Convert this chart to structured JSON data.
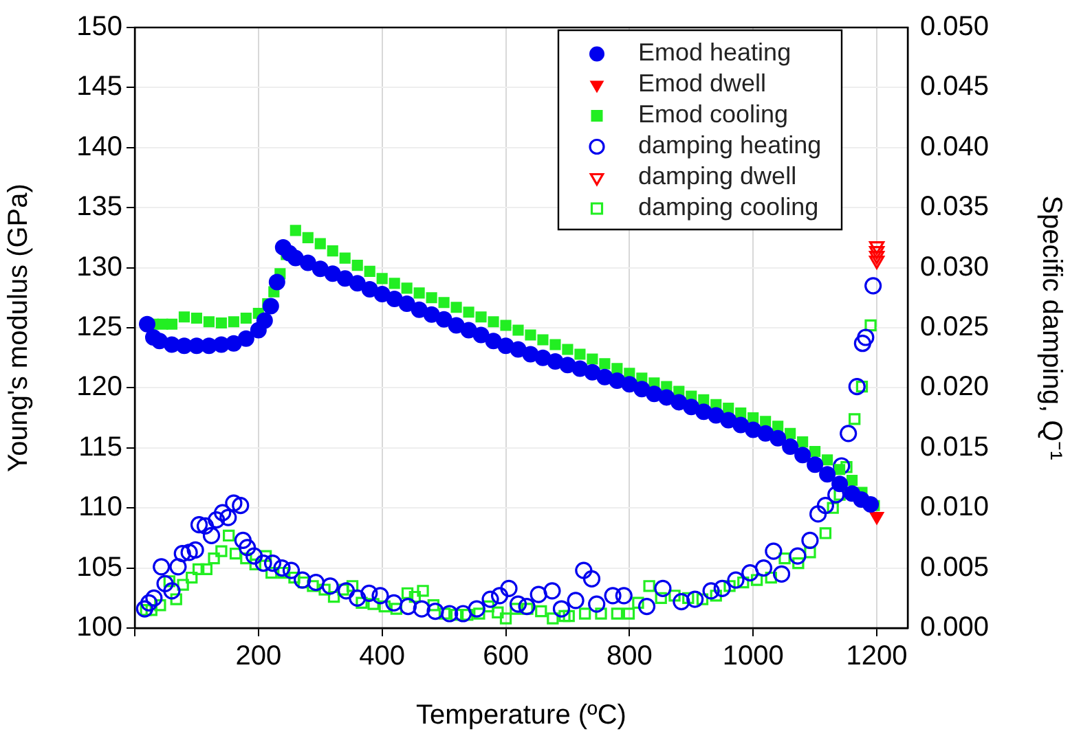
{
  "chart_data": {
    "type": "scatter",
    "xlabel": "Temperature (ºC)",
    "ylabel": "Young's modulus (GPa)",
    "y2label": "Specific damping, Q⁻¹",
    "xlim": [
      0,
      1250
    ],
    "xticks": [
      {
        "value": 0,
        "label": null
      },
      200,
      400,
      600,
      800,
      1000,
      1200
    ],
    "ylim": [
      100,
      150
    ],
    "yticks": [
      100,
      105,
      110,
      115,
      120,
      125,
      130,
      135,
      140,
      145,
      150
    ],
    "y2lim": [
      0,
      0.05
    ],
    "y2ticks": [
      {
        "value": 0,
        "label": "0.000"
      },
      {
        "value": 0.005,
        "label": "0.005"
      },
      {
        "value": 0.01,
        "label": "0.010"
      },
      {
        "value": 0.015,
        "label": "0.015"
      },
      {
        "value": 0.02,
        "label": "0.020"
      },
      {
        "value": 0.025,
        "label": "0.025"
      },
      {
        "value": 0.03,
        "label": "0.030"
      },
      {
        "value": 0.035,
        "label": "0.035"
      },
      {
        "value": 0.04,
        "label": "0.040"
      },
      {
        "value": 0.045,
        "label": "0.045"
      },
      {
        "value": 0.05,
        "label": "0.050"
      }
    ],
    "grid": true,
    "legend": "top right",
    "series": [
      {
        "name": "Emod heating",
        "color": "#0000ee",
        "marker": "circle",
        "x": [
          20,
          30,
          40,
          60,
          80,
          100,
          120,
          140,
          160,
          180,
          200,
          210,
          220,
          230,
          240,
          250,
          260,
          280,
          300,
          320,
          340,
          360,
          380,
          400,
          420,
          440,
          460,
          480,
          500,
          520,
          540,
          560,
          580,
          600,
          620,
          640,
          660,
          680,
          700,
          720,
          740,
          760,
          780,
          800,
          820,
          840,
          860,
          880,
          900,
          920,
          940,
          960,
          980,
          1000,
          1020,
          1040,
          1060,
          1080,
          1100,
          1120,
          1140,
          1160,
          1175,
          1190
        ],
        "values": [
          125.3,
          124.2,
          123.9,
          123.6,
          123.5,
          123.5,
          123.5,
          123.6,
          123.7,
          124.1,
          124.8,
          125.6,
          126.8,
          128.8,
          131.7,
          131.2,
          130.8,
          130.4,
          129.9,
          129.5,
          129.1,
          128.7,
          128.2,
          127.8,
          127.4,
          127.0,
          126.5,
          126.1,
          125.7,
          125.2,
          124.8,
          124.4,
          123.9,
          123.5,
          123.2,
          122.8,
          122.5,
          122.2,
          121.9,
          121.6,
          121.3,
          120.9,
          120.6,
          120.3,
          119.9,
          119.5,
          119.2,
          118.8,
          118.4,
          118.0,
          117.7,
          117.3,
          116.9,
          116.5,
          116.2,
          115.8,
          115.1,
          114.4,
          113.6,
          112.8,
          112.0,
          111.2,
          110.7,
          110.3
        ]
      },
      {
        "name": "Emod dwell",
        "color": "#ff0000",
        "marker": "triangle",
        "x": [
          1200
        ],
        "values": [
          109.3
        ]
      },
      {
        "name": "Emod cooling",
        "color": "#22ee22",
        "marker": "square",
        "x": [
          30,
          45,
          60,
          80,
          100,
          120,
          140,
          160,
          180,
          200,
          215,
          225,
          235,
          245,
          260,
          280,
          300,
          320,
          340,
          360,
          380,
          400,
          420,
          440,
          460,
          480,
          500,
          520,
          540,
          560,
          580,
          600,
          620,
          640,
          660,
          680,
          700,
          720,
          740,
          760,
          780,
          800,
          820,
          840,
          860,
          880,
          900,
          920,
          940,
          960,
          980,
          1000,
          1020,
          1040,
          1060,
          1080,
          1100,
          1120,
          1140,
          1160,
          1176,
          1196
        ],
        "values": [
          125.3,
          125.3,
          125.3,
          125.9,
          125.8,
          125.5,
          125.4,
          125.5,
          125.8,
          126.2,
          127.0,
          128.0,
          129.5,
          131.1,
          133.1,
          132.5,
          132.0,
          131.4,
          130.8,
          130.2,
          129.7,
          129.1,
          128.7,
          128.3,
          127.9,
          127.5,
          127.1,
          126.7,
          126.3,
          125.9,
          125.5,
          125.2,
          124.8,
          124.4,
          124.0,
          123.6,
          123.2,
          122.8,
          122.4,
          122.0,
          121.6,
          121.2,
          120.8,
          120.4,
          120.1,
          119.7,
          119.3,
          119.0,
          118.6,
          118.3,
          117.9,
          117.5,
          117.2,
          116.8,
          116.2,
          115.5,
          114.7,
          114.0,
          113.2,
          112.3,
          111.3,
          110.2
        ]
      },
      {
        "name": "damping heating",
        "color": "#0000ee",
        "marker": "circle",
        "axis": "y2",
        "x": [
          16,
          23,
          31,
          43,
          49,
          60,
          70,
          77,
          88,
          98,
          104,
          114,
          124,
          132,
          142,
          151,
          160,
          171,
          175,
          182,
          193,
          208,
          223,
          238,
          253,
          271,
          293,
          316,
          342,
          360,
          379,
          397,
          419,
          442,
          464,
          486,
          509,
          531,
          553,
          575,
          590,
          605,
          620,
          634,
          653,
          675,
          690,
          713,
          726,
          739,
          747,
          773,
          791,
          828,
          854,
          884,
          906,
          932,
          950,
          972,
          995,
          1017,
          1033,
          1046,
          1072,
          1092,
          1105,
          1117,
          1134,
          1143,
          1154,
          1168,
          1177,
          1182,
          1194
        ],
        "values": [
          0.0016,
          0.0021,
          0.0025,
          0.0051,
          0.0037,
          0.0031,
          0.0051,
          0.0062,
          0.0063,
          0.0065,
          0.0086,
          0.0085,
          0.0077,
          0.009,
          0.0096,
          0.0092,
          0.0104,
          0.0102,
          0.0073,
          0.0067,
          0.006,
          0.0054,
          0.0054,
          0.005,
          0.0048,
          0.004,
          0.0038,
          0.0035,
          0.0031,
          0.0025,
          0.0029,
          0.0027,
          0.0021,
          0.0018,
          0.0016,
          0.0014,
          0.0012,
          0.0012,
          0.0016,
          0.0024,
          0.0027,
          0.0033,
          0.002,
          0.0018,
          0.0028,
          0.0031,
          0.0016,
          0.0023,
          0.0048,
          0.0041,
          0.002,
          0.0027,
          0.0027,
          0.0018,
          0.0033,
          0.0022,
          0.0024,
          0.0031,
          0.0033,
          0.004,
          0.0046,
          0.005,
          0.0064,
          0.0045,
          0.006,
          0.0073,
          0.0095,
          0.0102,
          0.0111,
          0.0135,
          0.0162,
          0.0201,
          0.0237,
          0.0242,
          0.0285
        ]
      },
      {
        "name": "damping dwell",
        "color": "#ff0000",
        "marker": "triangle",
        "axis": "y2",
        "x": [
          1200,
          1200,
          1200,
          1200
        ],
        "values": [
          0.0318,
          0.0314,
          0.031,
          0.0306
        ]
      },
      {
        "name": "damping cooling",
        "color": "#22ee22",
        "marker": "square",
        "axis": "y2",
        "x": [
          18,
          27,
          41,
          56,
          67,
          78,
          92,
          103,
          116,
          128,
          140,
          152,
          163,
          180,
          195,
          212,
          221,
          240,
          258,
          273,
          288,
          307,
          322,
          337,
          352,
          367,
          386,
          404,
          423,
          441,
          453,
          466,
          483,
          501,
          520,
          538,
          557,
          572,
          587,
          600,
          616,
          635,
          657,
          676,
          695,
          702,
          728,
          754,
          780,
          799,
          814,
          832,
          851,
          873,
          895,
          918,
          940,
          962,
          984,
          1006,
          1029,
          1051,
          1073,
          1092,
          1117,
          1129,
          1140,
          1151,
          1164,
          1176,
          1190
        ],
        "values": [
          0.0015,
          0.0015,
          0.0019,
          0.0039,
          0.0024,
          0.0036,
          0.0042,
          0.0049,
          0.0049,
          0.0058,
          0.0064,
          0.0077,
          0.0062,
          0.0058,
          0.0053,
          0.006,
          0.0046,
          0.0046,
          0.0042,
          0.0038,
          0.0035,
          0.0032,
          0.0026,
          0.0032,
          0.0035,
          0.0021,
          0.002,
          0.0018,
          0.0016,
          0.0029,
          0.0026,
          0.0031,
          0.0019,
          0.0012,
          0.0011,
          0.0011,
          0.0012,
          0.0018,
          0.0013,
          0.0008,
          0.0016,
          0.0016,
          0.0014,
          0.0008,
          0.001,
          0.001,
          0.0012,
          0.0012,
          0.0012,
          0.0012,
          0.0021,
          0.0035,
          0.0025,
          0.0027,
          0.0025,
          0.0024,
          0.0027,
          0.0035,
          0.0038,
          0.004,
          0.0042,
          0.0058,
          0.0054,
          0.0063,
          0.0079,
          0.01,
          0.0111,
          0.0134,
          0.0174,
          0.0201,
          0.0252
        ]
      }
    ]
  }
}
